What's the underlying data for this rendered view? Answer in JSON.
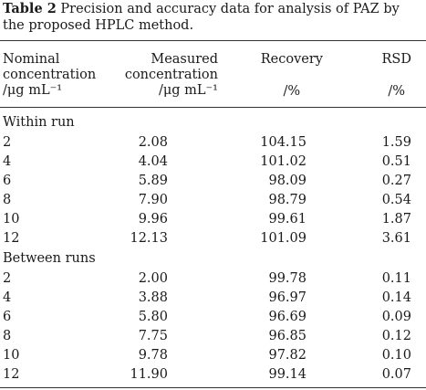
{
  "caption": {
    "label": "Table 2",
    "text": "Precision and accuracy data for analysis of PAZ by the proposed HPLC method."
  },
  "headers": {
    "nominal": [
      "Nominal",
      "concentration",
      "/μg mL⁻¹"
    ],
    "measured": [
      "Measured",
      "concentration",
      "/μg mL⁻¹"
    ],
    "recovery": [
      "Recovery",
      "/%"
    ],
    "rsd": [
      "RSD",
      "/%"
    ]
  },
  "sections": [
    {
      "title": "Within run",
      "rows": [
        [
          "2",
          "2.08",
          "104.15",
          "1.59"
        ],
        [
          "4",
          "4.04",
          "101.02",
          "0.51"
        ],
        [
          "6",
          "5.89",
          "98.09",
          "0.27"
        ],
        [
          "8",
          "7.90",
          "98.79",
          "0.54"
        ],
        [
          "10",
          "9.96",
          "99.61",
          "1.87"
        ],
        [
          "12",
          "12.13",
          "101.09",
          "3.61"
        ]
      ]
    },
    {
      "title": "Between runs",
      "rows": [
        [
          "2",
          "2.00",
          "99.78",
          "0.11"
        ],
        [
          "4",
          "3.88",
          "96.97",
          "0.14"
        ],
        [
          "6",
          "5.80",
          "96.69",
          "0.09"
        ],
        [
          "8",
          "7.75",
          "96.85",
          "0.12"
        ],
        [
          "10",
          "9.78",
          "97.82",
          "0.10"
        ],
        [
          "12",
          "11.90",
          "99.14",
          "0.07"
        ]
      ]
    }
  ]
}
